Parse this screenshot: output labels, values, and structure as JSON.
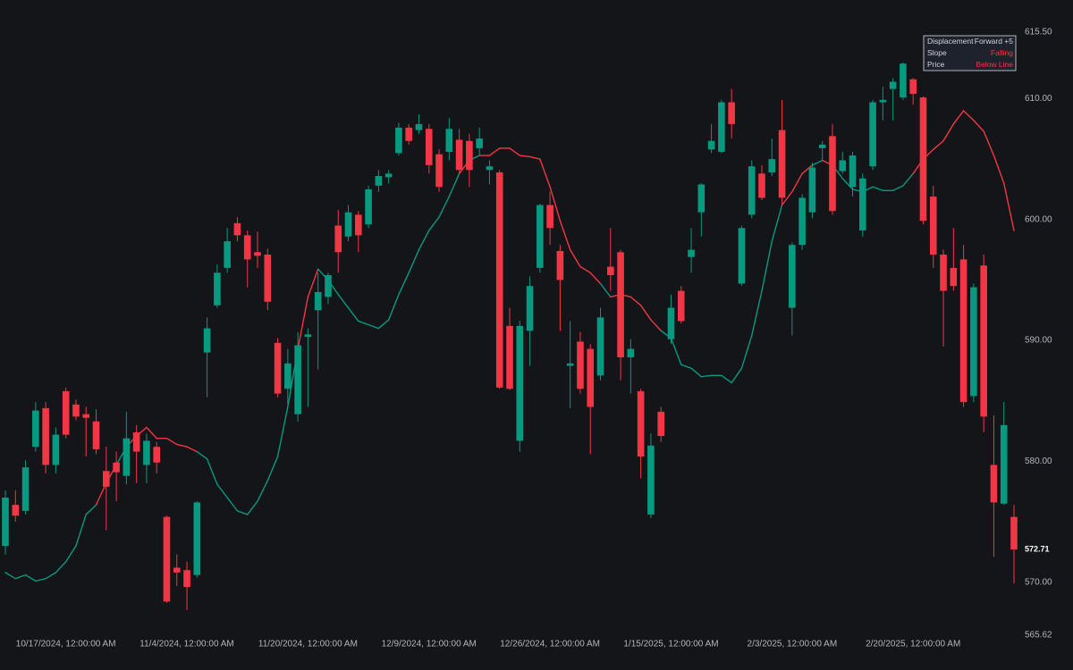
{
  "chart_data": {
    "type": "candlestick",
    "categories": [
      null,
      null,
      null,
      null,
      null,
      null,
      "10/17/2024, 12:00:00 AM",
      null,
      null,
      null,
      null,
      null,
      null,
      null,
      null,
      null,
      null,
      null,
      "11/4/2024, 12:00:00 AM",
      null,
      null,
      null,
      null,
      null,
      null,
      null,
      null,
      null,
      null,
      null,
      "11/20/2024, 12:00:00 AM",
      null,
      null,
      null,
      null,
      null,
      null,
      null,
      null,
      null,
      null,
      null,
      "12/9/2024, 12:00:00 AM",
      null,
      null,
      null,
      null,
      null,
      null,
      null,
      null,
      null,
      null,
      null,
      "12/26/2024, 12:00:00 AM",
      null,
      null,
      null,
      null,
      null,
      null,
      null,
      null,
      null,
      null,
      null,
      "1/15/2025, 12:00:00 AM",
      null,
      null,
      null,
      null,
      null,
      null,
      null,
      null,
      null,
      null,
      null,
      "2/3/2025, 12:00:00 AM",
      null,
      null,
      null,
      null,
      null,
      null,
      null,
      null,
      null,
      null,
      null,
      "2/20/2025, 12:00:00 AM",
      null,
      null,
      null,
      null,
      null,
      null,
      null,
      null,
      null,
      null
    ],
    "open": [
      573.0,
      576.4,
      575.9,
      581.2,
      584.4,
      579.7,
      585.8,
      584.7,
      583.9,
      583.3,
      579.2,
      579.9,
      578.8,
      582.4,
      579.7,
      581.2,
      575.4,
      571.2,
      571.0,
      570.6,
      589.0,
      592.9,
      596.0,
      599.7,
      598.7,
      597.3,
      597.1,
      589.8,
      586.0,
      583.9,
      590.3,
      592.5,
      593.6,
      599.5,
      598.6,
      600.4,
      599.6,
      602.8,
      603.5,
      605.5,
      607.6,
      607.4,
      607.5,
      605.4,
      605.6,
      606.6,
      606.5,
      605.9,
      604.1,
      603.9,
      591.2,
      581.7,
      590.8,
      596.0,
      601.2,
      597.4,
      587.9,
      589.9,
      589.3,
      587.1,
      596.1,
      597.3,
      588.6,
      585.8,
      575.6,
      584.1,
      590.1,
      594.1,
      596.9,
      600.6,
      605.8,
      605.6,
      609.7,
      594.7,
      600.4,
      603.8,
      603.9,
      607.4,
      592.7,
      597.9,
      600.6,
      605.9,
      606.9,
      604.0,
      602.7,
      599.1,
      604.4,
      609.7,
      610.8,
      610.1,
      611.6,
      610.1,
      601.9,
      597.1,
      596.0,
      596.7,
      585.4,
      596.2,
      579.7,
      576.5,
      575.4
    ],
    "high": [
      577.6,
      577.6,
      580.1,
      584.9,
      584.9,
      582.8,
      586.1,
      585.1,
      584.5,
      584.3,
      581.2,
      580.8,
      584.1,
      583.0,
      582.3,
      581.6,
      575.5,
      572.3,
      571.7,
      576.7,
      591.9,
      596.3,
      599.3,
      600.2,
      599.1,
      599.0,
      597.6,
      590.2,
      589.3,
      590.7,
      591.0,
      595.6,
      595.6,
      600.8,
      601.2,
      600.7,
      602.8,
      604.1,
      604.1,
      608.0,
      607.9,
      608.7,
      607.9,
      605.8,
      608.4,
      607.5,
      607.1,
      607.6,
      604.9,
      604.1,
      592.7,
      591.6,
      595.3,
      601.3,
      602.3,
      597.9,
      591.6,
      590.7,
      589.7,
      592.7,
      599.3,
      597.5,
      590.1,
      586.0,
      582.3,
      584.5,
      593.8,
      594.5,
      599.3,
      603.0,
      607.9,
      609.9,
      610.8,
      599.5,
      604.9,
      604.5,
      606.7,
      609.9,
      598.1,
      602.1,
      604.7,
      606.5,
      607.9,
      605.6,
      605.6,
      603.8,
      609.9,
      611.0,
      611.7,
      613.0,
      611.7,
      610.2,
      602.8,
      597.5,
      599.3,
      597.9,
      594.7,
      597.1,
      583.8,
      584.9,
      576.4
    ],
    "low": [
      572.3,
      575.0,
      575.6,
      580.8,
      579.0,
      579.0,
      581.9,
      583.4,
      580.4,
      580.6,
      574.3,
      576.7,
      578.1,
      578.2,
      578.2,
      579.0,
      568.3,
      569.7,
      567.7,
      570.4,
      585.3,
      592.7,
      595.6,
      598.2,
      594.4,
      596.0,
      592.5,
      585.3,
      584.7,
      583.3,
      584.5,
      587.6,
      593.0,
      595.6,
      598.2,
      597.3,
      599.3,
      602.3,
      603.0,
      605.3,
      606.2,
      607.1,
      603.8,
      602.3,
      604.9,
      603.8,
      602.7,
      605.3,
      602.9,
      586.0,
      585.9,
      580.8,
      587.9,
      595.6,
      597.9,
      590.8,
      584.4,
      585.6,
      580.6,
      586.7,
      594.1,
      586.7,
      585.6,
      578.6,
      575.3,
      581.6,
      589.7,
      591.4,
      595.6,
      598.6,
      605.5,
      605.5,
      606.7,
      594.5,
      600.1,
      601.6,
      603.6,
      601.2,
      590.4,
      597.5,
      600.1,
      604.9,
      600.4,
      603.8,
      601.9,
      598.6,
      604.1,
      608.2,
      608.2,
      609.9,
      609.5,
      599.6,
      596.0,
      589.5,
      594.1,
      584.5,
      584.9,
      582.4,
      572.1,
      576.4,
      569.9
    ],
    "close": [
      577.0,
      575.5,
      579.5,
      584.2,
      579.7,
      582.2,
      582.2,
      583.7,
      583.6,
      581.0,
      577.9,
      579.1,
      581.9,
      580.8,
      581.7,
      579.9,
      568.4,
      570.8,
      569.6,
      576.6,
      591.0,
      595.6,
      598.2,
      598.7,
      596.7,
      597.0,
      593.2,
      585.6,
      588.1,
      589.6,
      590.5,
      594.0,
      595.4,
      597.3,
      600.6,
      598.7,
      602.5,
      603.6,
      603.8,
      607.6,
      606.5,
      607.9,
      604.5,
      602.7,
      607.5,
      604.1,
      604.1,
      606.7,
      604.4,
      586.1,
      586.0,
      591.2,
      594.5,
      601.2,
      599.3,
      595.0,
      588.1,
      586.0,
      584.5,
      591.9,
      595.4,
      588.6,
      589.3,
      580.4,
      581.3,
      582.1,
      592.7,
      591.6,
      597.5,
      602.9,
      606.5,
      609.7,
      607.9,
      599.3,
      604.4,
      601.8,
      605.0,
      601.8,
      597.9,
      601.8,
      604.3,
      606.2,
      600.7,
      604.9,
      605.3,
      603.4,
      609.7,
      609.9,
      611.4,
      612.9,
      610.4,
      599.9,
      597.1,
      594.1,
      594.5,
      584.9,
      594.4,
      583.7,
      576.6,
      583.0,
      572.71
    ],
    "ma": [
      570.8,
      570.3,
      570.6,
      570.1,
      570.3,
      570.8,
      571.7,
      573.0,
      575.6,
      576.4,
      578.2,
      579.7,
      581.2,
      582.1,
      582.8,
      581.9,
      581.9,
      581.4,
      581.2,
      580.8,
      580.2,
      578.1,
      577.0,
      575.9,
      575.6,
      576.7,
      578.4,
      580.4,
      584.5,
      589.3,
      593.6,
      595.9,
      595.0,
      593.8,
      592.7,
      591.6,
      591.3,
      591.0,
      591.7,
      593.8,
      595.6,
      597.5,
      599.1,
      600.2,
      601.9,
      603.8,
      604.9,
      605.3,
      605.3,
      605.9,
      605.9,
      605.3,
      605.2,
      605.0,
      602.7,
      599.9,
      597.5,
      596.1,
      595.6,
      594.7,
      593.6,
      593.8,
      593.6,
      592.9,
      591.7,
      590.8,
      590.2,
      588.0,
      587.7,
      587.0,
      587.1,
      587.1,
      586.5,
      587.7,
      590.4,
      594.1,
      598.2,
      601.2,
      602.3,
      603.8,
      604.5,
      604.9,
      604.5,
      603.4,
      602.5,
      602.3,
      602.7,
      602.4,
      602.4,
      602.8,
      603.8,
      605.0,
      605.8,
      606.5,
      607.9,
      609.0,
      608.2,
      607.3,
      605.3,
      603.0,
      599.1
    ],
    "up_color": "#089981",
    "down_color": "#f23645",
    "ylim": [
      565.62,
      615.5
    ],
    "yticks": [
      565.62,
      {
        "value": 570,
        "label": "570.00"
      },
      {
        "value": 580,
        "label": "580.00"
      },
      {
        "value": 590,
        "label": "590.00"
      },
      {
        "value": 600,
        "label": "600.00"
      },
      {
        "value": 610,
        "label": "610.00"
      },
      {
        "value": 615.5,
        "label": "615.50"
      }
    ],
    "grid": false,
    "info_rows": [
      [
        "Displacement",
        "Forward +5"
      ],
      [
        "Slope",
        "Falling"
      ],
      [
        "Price",
        "Below Line"
      ]
    ]
  }
}
